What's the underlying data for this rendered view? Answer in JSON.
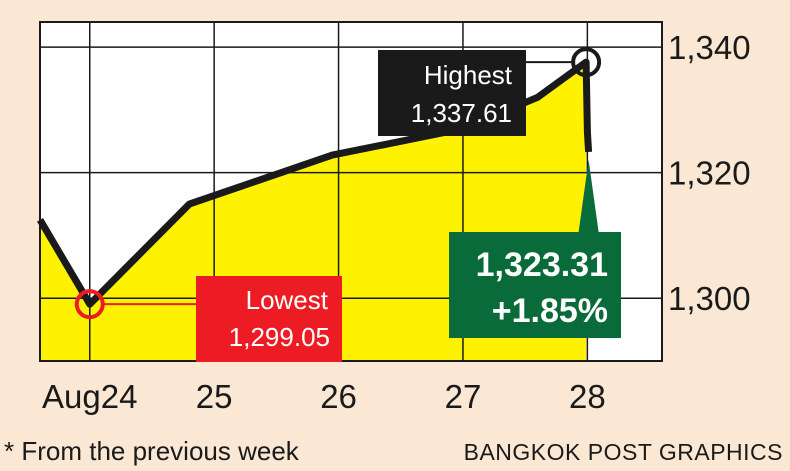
{
  "chart_data": {
    "type": "area",
    "categories": [
      "Aug24",
      "25",
      "26",
      "27",
      "28"
    ],
    "series": [
      {
        "x": [
          23.6,
          24.0,
          24.8,
          25.95,
          27.0,
          27.6,
          27.99,
          28.0,
          28.01
        ],
        "values": [
          1312.5,
          1299.05,
          1315.0,
          1322.8,
          1327.0,
          1332.0,
          1337.61,
          1326.5,
          1323.31
        ]
      }
    ],
    "y_ticks": [
      "1,300",
      "1,320",
      "1,340"
    ],
    "ylim": [
      1290,
      1344
    ],
    "xlim": [
      23.6,
      28.6
    ],
    "grid": true,
    "annotations": {
      "highest": {
        "label": "Highest",
        "value": "1,337.61"
      },
      "lowest": {
        "label": "Lowest",
        "value": "1,299.05"
      },
      "close": {
        "value": "1,323.31",
        "change": "+1.85%"
      }
    },
    "colors": {
      "fill": "#fff200",
      "line": "#1a1a1a",
      "highest_box": "#1a1a1a",
      "lowest_box": "#ed1c24",
      "close_box": "#0a6b3a"
    }
  },
  "footnote": "* From the previous week",
  "credit": "BANGKOK POST GRAPHICS"
}
